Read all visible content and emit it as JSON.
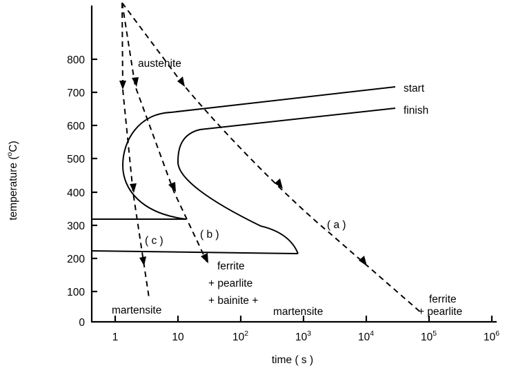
{
  "axes": {
    "x_label": "time ( s )",
    "y_label": "temperature (",
    "y_unit_sup": "o",
    "y_unit": "C)",
    "y_ticks": [
      "0",
      "100",
      "200",
      "300",
      "400",
      "500",
      "600",
      "700",
      "800"
    ],
    "x_ticks": [
      {
        "base": "1",
        "exp": ""
      },
      {
        "base": "10",
        "exp": ""
      },
      {
        "base": "10",
        "exp": "2"
      },
      {
        "base": "10",
        "exp": "3"
      },
      {
        "base": "10",
        "exp": "4"
      },
      {
        "base": "10",
        "exp": "5"
      },
      {
        "base": "10",
        "exp": "6"
      }
    ]
  },
  "labels": {
    "austenite": "austenite",
    "start": "start",
    "finish": "finish",
    "path_a": "( a )",
    "path_b": "( b )",
    "path_c": "( c )",
    "end_c": "martensite",
    "end_b_line1": "ferrite",
    "end_b_line2": "+ pearlite",
    "end_b_line3": "+ bainite +",
    "end_b_line4": "martensite",
    "end_a_line1": "ferrite",
    "end_a_line2": "+ pearlite"
  }
}
